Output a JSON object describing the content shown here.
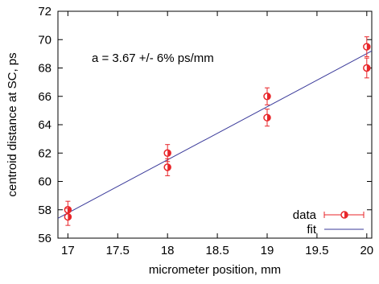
{
  "chart_data": {
    "type": "scatter",
    "title": "",
    "xlabel": "micrometer position, mm",
    "ylabel": "centroid distance at SC, ps",
    "xlim": [
      16.9,
      20.05
    ],
    "ylim": [
      56,
      72
    ],
    "xticks": [
      17,
      17.5,
      18,
      18.5,
      19,
      19.5,
      20
    ],
    "xtick_labels": [
      "17",
      "17.5",
      "18",
      "18.5",
      "19",
      "19.5",
      "20"
    ],
    "yticks": [
      56,
      58,
      60,
      62,
      64,
      66,
      68,
      70,
      72
    ],
    "ytick_labels": [
      "56",
      "58",
      "60",
      "62",
      "64",
      "66",
      "68",
      "70",
      "72"
    ],
    "grid": false,
    "annotation": "a = 3.67 +/- 6% ps/mm",
    "legend": {
      "placement": "bottom-right",
      "entries": [
        "data",
        "fit"
      ]
    },
    "series": [
      {
        "name": "data",
        "kind": "points-with-yerr",
        "color": "#e8262a",
        "x": [
          17,
          17,
          18,
          18,
          19,
          19,
          20,
          20
        ],
        "y": [
          58.0,
          57.5,
          62.0,
          61.0,
          66.0,
          64.5,
          69.5,
          68.0
        ],
        "yerr": [
          0.6,
          0.6,
          0.6,
          0.6,
          0.6,
          0.6,
          0.7,
          0.7
        ]
      },
      {
        "name": "fit",
        "kind": "line",
        "color": "#3a3a9a",
        "x": [
          16.9,
          20.05
        ],
        "y": [
          57.4,
          69.2
        ]
      }
    ]
  }
}
